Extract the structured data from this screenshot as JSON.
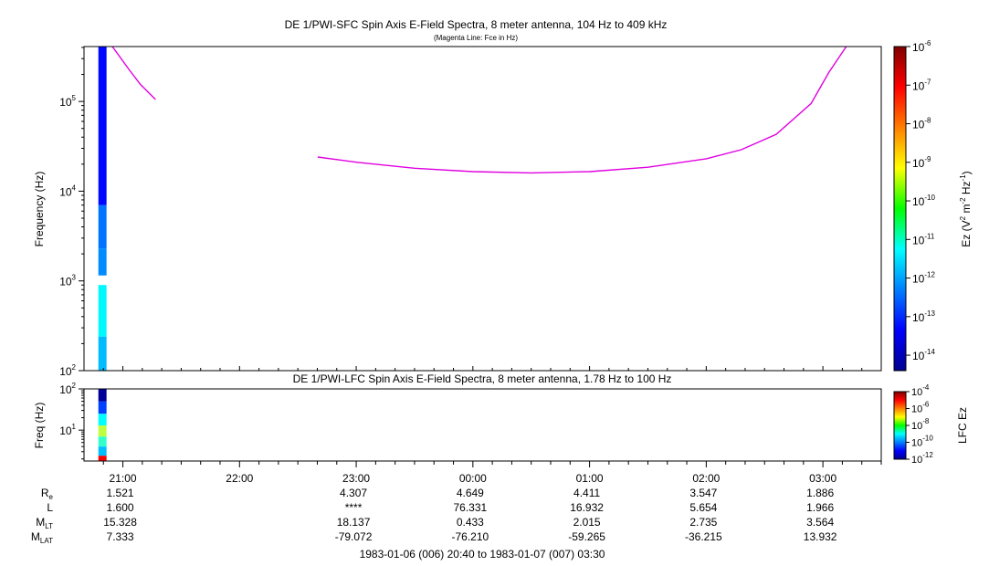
{
  "figure": {
    "title": "DE 1/PWI-SFC  Spin Axis E-Field Spectra, 8 meter antenna, 104 Hz to 409 kHz",
    "subtitle": "(Magenta Line: Fce in Hz)",
    "lfc_title": "DE 1/PWI-LFC  Spin Axis E-Field Spectra, 8 meter antenna, 1.78 Hz to 100 Hz",
    "time_range": "1983-01-06 (006) 20:40 to 1983-01-07 (007) 03:30"
  },
  "chart_data": [
    {
      "type": "heatmap",
      "panel": "SFC",
      "title": "DE 1/PWI-SFC  Spin Axis E-Field Spectra, 8 meter antenna, 104 Hz to 409 kHz",
      "ylabel": "Frequency (Hz)",
      "yscale": "log",
      "ylim": [
        100,
        409000
      ],
      "ytick_labels": [
        "10^2",
        "10^3",
        "10^4",
        "10^5"
      ],
      "xlim_hours": [
        20.667,
        27.5
      ],
      "x_tick_labels": [
        "21:00",
        "22:00",
        "23:00",
        "00:00",
        "01:00",
        "02:00",
        "03:00"
      ],
      "data_time_span_hours": [
        20.79,
        20.86
      ],
      "data_gap_hz": [
        900,
        1150
      ],
      "column_levels": [
        {
          "freq_range_hz": [
            100,
            240
          ],
          "log10_ez": -11.8
        },
        {
          "freq_range_hz": [
            240,
            900
          ],
          "log10_ez": -11.3
        },
        {
          "freq_range_hz": [
            1150,
            2300
          ],
          "log10_ez": -12.2
        },
        {
          "freq_range_hz": [
            2300,
            7000
          ],
          "log10_ez": -12.4
        },
        {
          "freq_range_hz": [
            7000,
            409000
          ],
          "log10_ez": -13.3
        }
      ],
      "fce_line_label": "Magenta Line: Fce in Hz",
      "fce_line_color": "#e000e0",
      "fce_segments": [
        {
          "t_hours": [
            20.91,
            21.05,
            21.15,
            21.28
          ],
          "freq_hz": [
            409000,
            230000,
            155000,
            105000
          ]
        },
        {
          "t_hours": [
            22.67,
            23.0,
            23.5,
            24.0,
            24.5,
            25.0,
            25.5,
            26.0,
            26.3,
            26.6,
            26.9,
            27.05,
            27.2
          ],
          "freq_hz": [
            24000,
            21000,
            18000,
            16500,
            16000,
            16500,
            18500,
            23000,
            29000,
            43000,
            95000,
            210000,
            409000
          ]
        }
      ],
      "colorbar": {
        "label": "Ez (V² m⁻² Hz⁻¹)",
        "scale": "log",
        "range": [
          -14.4,
          -6
        ],
        "tick_labels": [
          "10^-6",
          "10^-7",
          "10^-8",
          "10^-9",
          "10^-10",
          "10^-11",
          "10^-12",
          "10^-13",
          "10^-14"
        ]
      }
    },
    {
      "type": "heatmap",
      "panel": "LFC",
      "title": "DE 1/PWI-LFC  Spin Axis E-Field Spectra, 8 meter antenna, 1.78 Hz to 100 Hz",
      "ylabel": "Freq (Hz)",
      "yscale": "log",
      "ylim": [
        1.78,
        100
      ],
      "ytick_labels": [
        "10^1",
        "10^2"
      ],
      "xlim_hours": [
        20.667,
        27.5
      ],
      "data_time_span_hours": [
        20.79,
        20.86
      ],
      "column_levels": [
        {
          "freq_range_hz": [
            1.78,
            2.4
          ],
          "log10_ez": -5.0
        },
        {
          "freq_range_hz": [
            2.4,
            4.0
          ],
          "log10_ez": -9.5
        },
        {
          "freq_range_hz": [
            4.0,
            7.0
          ],
          "log10_ez": -8.6
        },
        {
          "freq_range_hz": [
            7.0,
            13.0
          ],
          "log10_ez": -7.5
        },
        {
          "freq_range_hz": [
            13.0,
            25.0
          ],
          "log10_ez": -9.0
        },
        {
          "freq_range_hz": [
            25.0,
            50.0
          ],
          "log10_ez": -10.5
        },
        {
          "freq_range_hz": [
            50.0,
            100.0
          ],
          "log10_ez": -11.8
        }
      ],
      "colorbar": {
        "label": "LFC Ez",
        "scale": "log",
        "range": [
          -12,
          -4
        ],
        "tick_labels": [
          "10^-4",
          "10^-6",
          "10^-8",
          "10^-10",
          "10^-12"
        ]
      }
    }
  ],
  "ephemeris": {
    "row_labels": [
      {
        "main": "R",
        "sub": "e"
      },
      {
        "main": "L",
        "sub": ""
      },
      {
        "main": "M",
        "sub": "LT"
      },
      {
        "main": "M",
        "sub": "LAT"
      }
    ],
    "columns": [
      {
        "values": [
          "1.521",
          "1.600",
          "15.328",
          "7.333"
        ]
      },
      {
        "values": [
          "",
          "",
          "",
          ""
        ]
      },
      {
        "values": [
          "4.307",
          "****",
          "18.137",
          "-79.072"
        ]
      },
      {
        "values": [
          "4.649",
          "76.331",
          "0.433",
          "-76.210"
        ]
      },
      {
        "values": [
          "4.411",
          "16.932",
          "2.015",
          "-59.265"
        ]
      },
      {
        "values": [
          "3.547",
          "5.654",
          "2.735",
          "-36.215"
        ]
      },
      {
        "values": [
          "1.886",
          "1.966",
          "3.564",
          "13.932"
        ]
      }
    ]
  }
}
